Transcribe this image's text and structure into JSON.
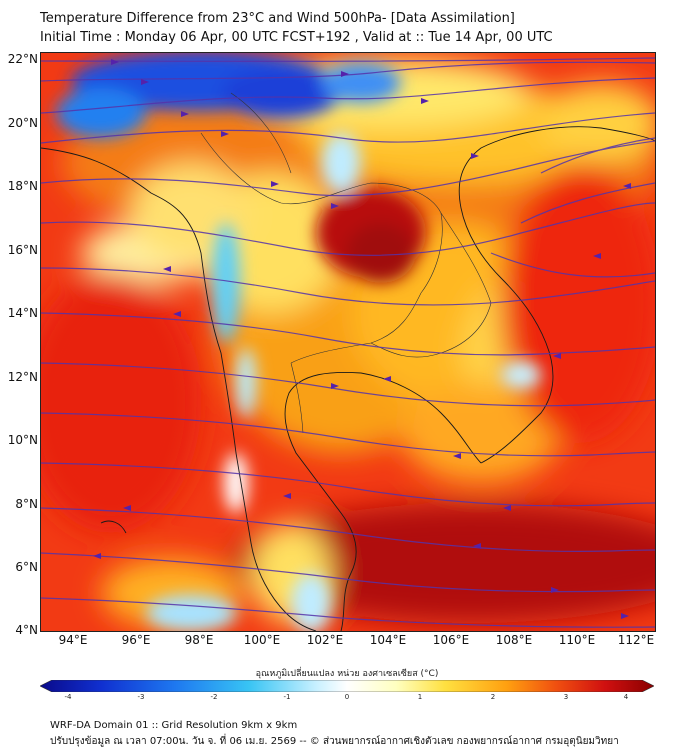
{
  "title_line1": "Temperature Difference from 23°C and Wind 500hPa- [Data Assimilation]",
  "title_line2": "Initial Time : Monday 06 Apr, 00 UTC FCST+192 , Valid at ::  Tue 14 Apr, 00 UTC",
  "map": {
    "lat_labels": [
      "22°N",
      "20°N",
      "18°N",
      "16°N",
      "14°N",
      "12°N",
      "10°N",
      "8°N",
      "6°N",
      "4°N"
    ],
    "lon_labels": [
      "94°E",
      "96°E",
      "98°E",
      "100°E",
      "102°E",
      "104°E",
      "106°E",
      "108°E",
      "110°E",
      "112°E"
    ],
    "extent": {
      "lon": [
        93,
        112.5
      ],
      "lat": [
        4,
        22.3
      ]
    },
    "field": "temperature difference shading with 500hPa streamlines"
  },
  "colorbar": {
    "caption": "อุณหภูมิเปลี่ยนแปลง หน่วย องศาเซลเซียส (°C)",
    "ticks": [
      "-4",
      "-3",
      "-2",
      "-1",
      "0",
      "1",
      "2",
      "3",
      "4"
    ],
    "range": [
      -4,
      4
    ],
    "colors": [
      "#0a0a8a",
      "#1030d0",
      "#1e78f0",
      "#38c4f4",
      "#c8f0ff",
      "#ffffff",
      "#ffffc0",
      "#ffe040",
      "#ffa010",
      "#f05010",
      "#d01010",
      "#8a0000"
    ]
  },
  "footer_line1": "WRF-DA Domain 01 :: Grid Resolution 9km x 9km",
  "footer_line2": "ปรับปรุงข้อมูล ณ เวลา 07:00น. วัน จ. ที่ 06 เม.ย. 2569 -- © ส่วนพยากรณ์อากาศเชิงตัวเลข กองพยากรณ์อากาศ กรมอุตุนิยมวิทยา"
}
